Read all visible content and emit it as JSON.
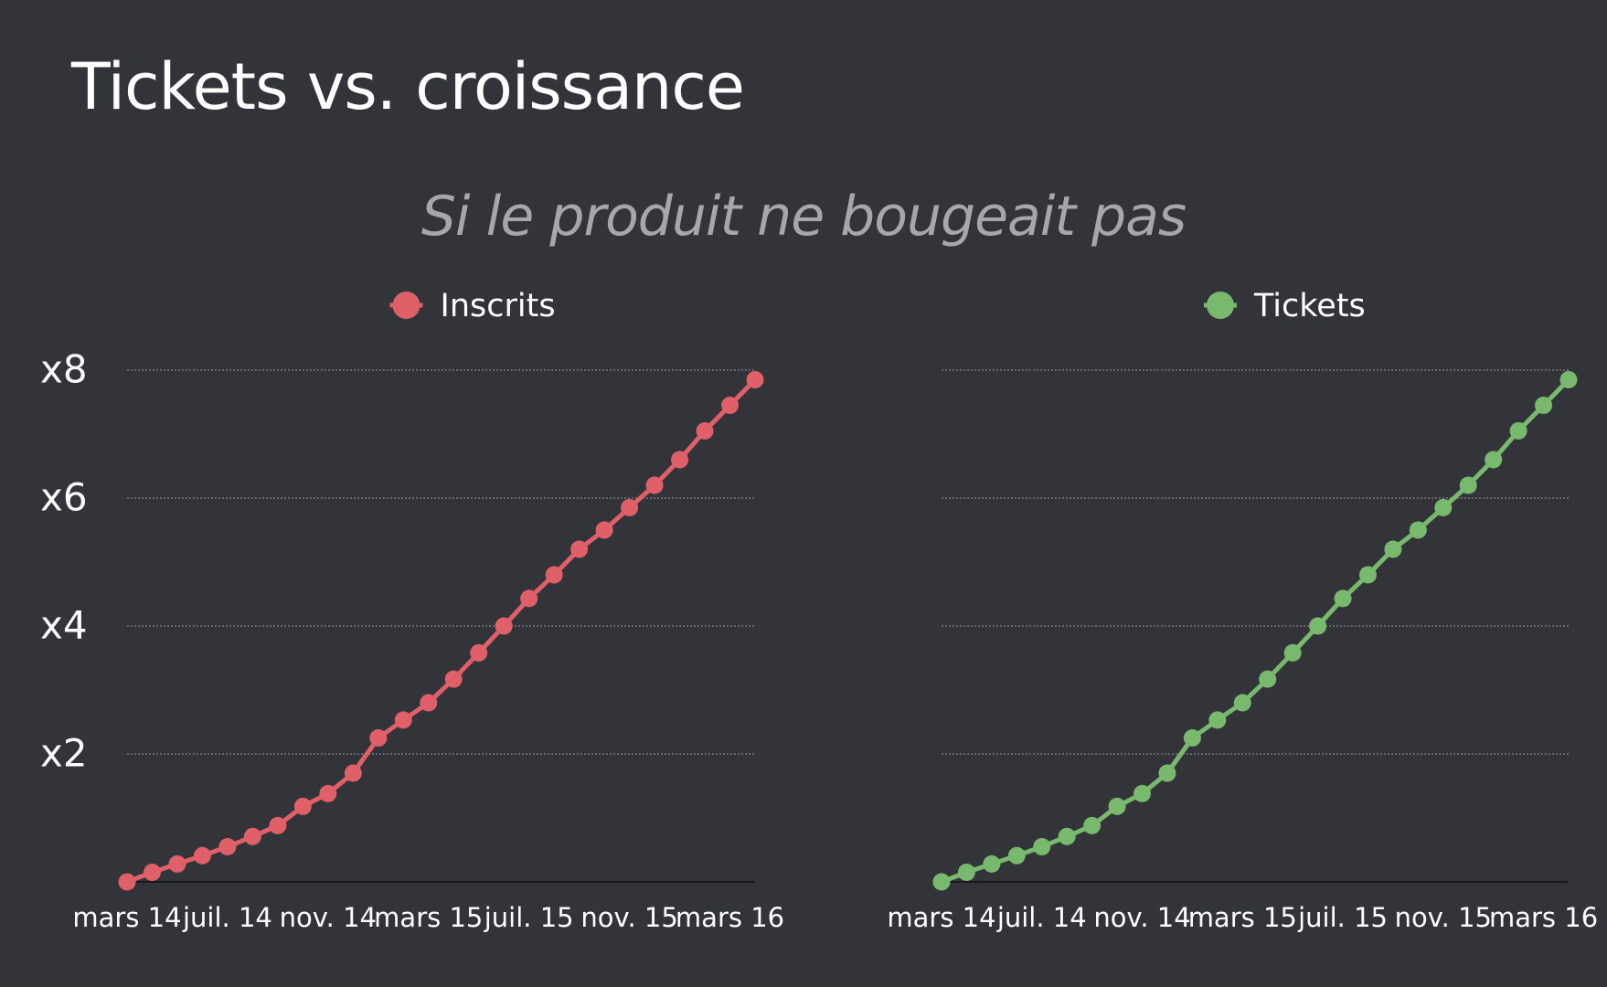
{
  "title": "Tickets vs. croissance",
  "subtitle": "Si le produit ne bougeait pas",
  "chart_data": [
    {
      "type": "line",
      "y_tick_labels": [
        "x2",
        "x4",
        "x6",
        "x8"
      ],
      "y_tick_values": [
        2,
        4,
        6,
        8
      ],
      "ylim": [
        0,
        8
      ],
      "x_tick_labels": [
        "mars 14",
        "juil. 14",
        "nov. 14",
        "mars 15",
        "juil. 15",
        "nov. 15",
        "mars 16"
      ],
      "x_tick_indices": [
        0,
        4,
        8,
        12,
        16,
        20,
        24
      ],
      "grid": true,
      "legend_position": "top",
      "series": [
        {
          "name": "Inscrits",
          "color": "#e0606a",
          "values": [
            0.0,
            0.15,
            0.28,
            0.41,
            0.55,
            0.71,
            0.88,
            1.18,
            1.38,
            1.7,
            2.25,
            2.53,
            2.8,
            3.17,
            3.58,
            4.0,
            4.43,
            4.8,
            5.2,
            5.5,
            5.85,
            6.2,
            6.6,
            7.05,
            7.45,
            7.85
          ]
        }
      ]
    },
    {
      "type": "line",
      "y_tick_labels": [
        "x2",
        "x4",
        "x6",
        "x8"
      ],
      "y_tick_values": [
        2,
        4,
        6,
        8
      ],
      "ylim": [
        0,
        8
      ],
      "x_tick_labels": [
        "mars 14",
        "juil. 14",
        "nov. 14",
        "mars 15",
        "juil. 15",
        "nov. 15",
        "mars 16"
      ],
      "x_tick_indices": [
        0,
        4,
        8,
        12,
        16,
        20,
        24
      ],
      "grid": true,
      "legend_position": "top",
      "series": [
        {
          "name": "Tickets",
          "color": "#78b96e",
          "values": [
            0.0,
            0.15,
            0.28,
            0.41,
            0.55,
            0.71,
            0.88,
            1.18,
            1.38,
            1.7,
            2.25,
            2.53,
            2.8,
            3.17,
            3.58,
            4.0,
            4.43,
            4.8,
            5.2,
            5.5,
            5.85,
            6.2,
            6.6,
            7.05,
            7.45,
            7.85
          ]
        }
      ]
    }
  ]
}
